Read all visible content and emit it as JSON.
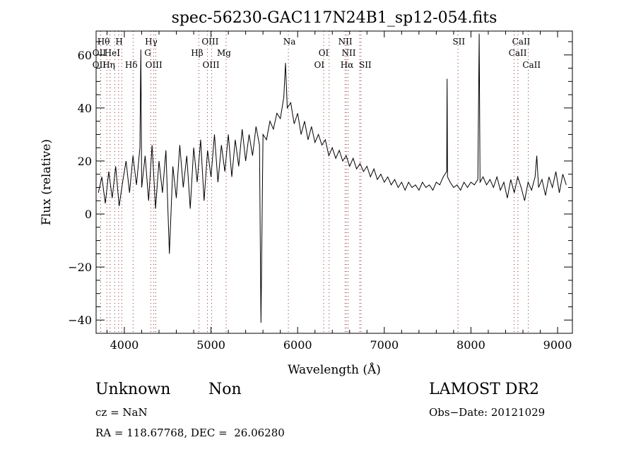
{
  "chart_data": {
    "type": "line",
    "title": "spec-56230-GAC117N24B1_sp12-054.fits",
    "xlabel": "Wavelength (Å)",
    "ylabel": "Flux (relative)",
    "xlim": [
      3674,
      9171
    ],
    "ylim": [
      -45,
      69
    ],
    "xticks": [
      4000,
      5000,
      6000,
      7000,
      8000,
      9000
    ],
    "xtick_labels": [
      "4000",
      "5000",
      "6000",
      "7000",
      "8000",
      "9000"
    ],
    "yticks": [
      -40,
      -20,
      0,
      20,
      40,
      60
    ],
    "ytick_labels": [
      "−40",
      "−20",
      "0",
      "20",
      "40",
      "60"
    ],
    "grid": false,
    "series": [
      {
        "name": "spectrum",
        "color": "#000000",
        "x": [
          3700,
          3740,
          3780,
          3820,
          3860,
          3900,
          3940,
          3980,
          4020,
          4060,
          4100,
          4140,
          4180,
          4190,
          4200,
          4240,
          4280,
          4320,
          4360,
          4400,
          4440,
          4480,
          4520,
          4560,
          4600,
          4640,
          4680,
          4720,
          4760,
          4800,
          4840,
          4880,
          4920,
          4960,
          5000,
          5040,
          5080,
          5120,
          5160,
          5200,
          5240,
          5280,
          5320,
          5360,
          5400,
          5440,
          5480,
          5520,
          5560,
          5577,
          5600,
          5640,
          5680,
          5720,
          5760,
          5800,
          5840,
          5860,
          5880,
          5920,
          5960,
          6000,
          6040,
          6080,
          6120,
          6160,
          6200,
          6240,
          6280,
          6320,
          6360,
          6400,
          6440,
          6480,
          6520,
          6560,
          6600,
          6640,
          6680,
          6720,
          6760,
          6800,
          6840,
          6880,
          6920,
          6960,
          7000,
          7040,
          7080,
          7120,
          7160,
          7200,
          7240,
          7280,
          7320,
          7360,
          7400,
          7440,
          7480,
          7520,
          7560,
          7600,
          7640,
          7680,
          7720,
          7725,
          7730,
          7760,
          7800,
          7840,
          7880,
          7920,
          7960,
          8000,
          8040,
          8080,
          8095,
          8105,
          8140,
          8180,
          8220,
          8260,
          8300,
          8340,
          8380,
          8420,
          8460,
          8500,
          8540,
          8580,
          8620,
          8660,
          8700,
          8740,
          8760,
          8780,
          8820,
          8860,
          8900,
          8940,
          8980,
          9020,
          9060,
          9100
        ],
        "y": [
          8,
          14,
          4,
          16,
          6,
          18,
          3,
          12,
          20,
          8,
          22,
          11,
          25,
          62,
          10,
          22,
          5,
          26,
          2,
          20,
          8,
          24,
          -15,
          18,
          6,
          26,
          10,
          22,
          2,
          25,
          12,
          28,
          5,
          24,
          14,
          30,
          12,
          26,
          16,
          30,
          14,
          28,
          18,
          32,
          20,
          30,
          22,
          33,
          26,
          -41,
          30,
          28,
          35,
          32,
          38,
          36,
          44,
          57,
          40,
          42,
          34,
          38,
          30,
          35,
          28,
          33,
          27,
          30,
          26,
          28,
          22,
          25,
          21,
          24,
          20,
          22,
          18,
          21,
          17,
          19,
          16,
          18,
          14,
          17,
          13,
          15,
          12,
          14,
          11,
          13,
          10,
          12,
          9,
          12,
          10,
          11,
          9,
          12,
          10,
          11,
          9,
          12,
          11,
          14,
          16,
          51,
          14,
          12,
          10,
          11,
          9,
          12,
          10,
          12,
          11,
          13,
          68,
          12,
          14,
          11,
          13,
          10,
          14,
          9,
          12,
          6,
          13,
          8,
          14,
          10,
          5,
          12,
          9,
          14,
          22,
          10,
          13,
          7,
          14,
          10,
          16,
          8,
          15,
          11
        ]
      }
    ],
    "line_markers": [
      3727,
      3798,
      3835,
      3889,
      3934,
      3970,
      4101,
      4305,
      4340,
      4363,
      4861,
      4959,
      5007,
      5175,
      5893,
      6300,
      6363,
      6548,
      6563,
      6583,
      6716,
      6731,
      7850,
      8498,
      8542,
      8662
    ],
    "annotations": [
      {
        "text": "Hθ",
        "wavelength": 3760,
        "row": 1
      },
      {
        "text": "H",
        "wavelength": 3940,
        "row": 1
      },
      {
        "text": "Hγ",
        "wavelength": 4310,
        "row": 1
      },
      {
        "text": "OIII",
        "wavelength": 4990,
        "row": 1
      },
      {
        "text": "Na",
        "wavelength": 5905,
        "row": 1
      },
      {
        "text": "NII",
        "wavelength": 6550,
        "row": 1
      },
      {
        "text": "SII",
        "wavelength": 7860,
        "row": 1
      },
      {
        "text": "CaII",
        "wavelength": 8580,
        "row": 1
      },
      {
        "text": "OII",
        "wavelength": 3710,
        "row": 2
      },
      {
        "text": "HeI",
        "wavelength": 3860,
        "row": 2
      },
      {
        "text": "G",
        "wavelength": 4270,
        "row": 2
      },
      {
        "text": "Hβ",
        "wavelength": 4840,
        "row": 2
      },
      {
        "text": "Mg",
        "wavelength": 5150,
        "row": 2
      },
      {
        "text": "OI",
        "wavelength": 6300,
        "row": 2
      },
      {
        "text": "NII",
        "wavelength": 6590,
        "row": 2
      },
      {
        "text": "CaII",
        "wavelength": 8540,
        "row": 2
      },
      {
        "text": "OII",
        "wavelength": 3710,
        "row": 3
      },
      {
        "text": "Hη",
        "wavelength": 3820,
        "row": 3
      },
      {
        "text": "Hδ",
        "wavelength": 4080,
        "row": 3
      },
      {
        "text": "OIII",
        "wavelength": 4340,
        "row": 3
      },
      {
        "text": "OIII",
        "wavelength": 5000,
        "row": 3
      },
      {
        "text": "OI",
        "wavelength": 6250,
        "row": 3
      },
      {
        "text": "Hα",
        "wavelength": 6570,
        "row": 3
      },
      {
        "text": "SII",
        "wavelength": 6780,
        "row": 3
      },
      {
        "text": "CaII",
        "wavelength": 8700,
        "row": 3
      }
    ]
  },
  "info": {
    "class": "Unknown",
    "subclass": "Non",
    "survey": "LAMOST DR2",
    "cz": "cz = NaN",
    "obs_date": "Obs−Date: 20121029",
    "coords": "RA = 118.67768, DEC =  26.06280"
  }
}
